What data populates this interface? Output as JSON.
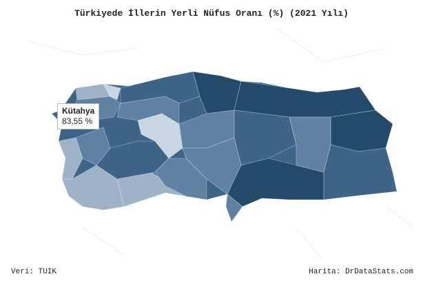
{
  "title": "Türkiyede İllerin Yerli Nüfus Oranı (%) (2021 Yılı)",
  "source": "Veri: TUIK",
  "credit": "Harita: DrDataStats.com",
  "tooltip": {
    "province": "Kütahya",
    "value": "83,55 %"
  },
  "colors": {
    "lightest": "#c9d6e3",
    "light": "#9fb3c8",
    "mid": "#5f82a3",
    "dark": "#3e6488",
    "darkest": "#244a6b"
  }
}
